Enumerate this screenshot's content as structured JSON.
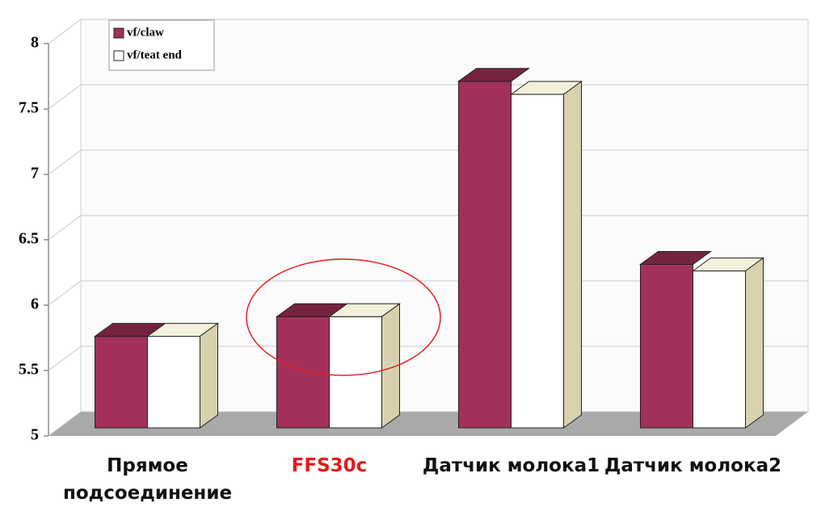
{
  "chart_data": {
    "type": "bar3d",
    "categories": [
      "Прямое подсоединение",
      "FFS30c",
      "Датчик молока1",
      "Датчик молока2"
    ],
    "category_label_colors": [
      "#111111",
      "#e31b1b",
      "#111111",
      "#111111"
    ],
    "series": [
      {
        "name": "vf/claw",
        "color": "#a3305a",
        "values": [
          5.7,
          5.85,
          7.65,
          6.25
        ]
      },
      {
        "name": "vf/teat end",
        "color": "#ffffff",
        "values": [
          5.7,
          5.85,
          7.55,
          6.2
        ]
      }
    ],
    "ylim": [
      5,
      8
    ],
    "yticks": [
      5,
      5.5,
      6,
      6.5,
      7,
      7.5,
      8
    ],
    "grid": true,
    "legend": "top-left"
  }
}
